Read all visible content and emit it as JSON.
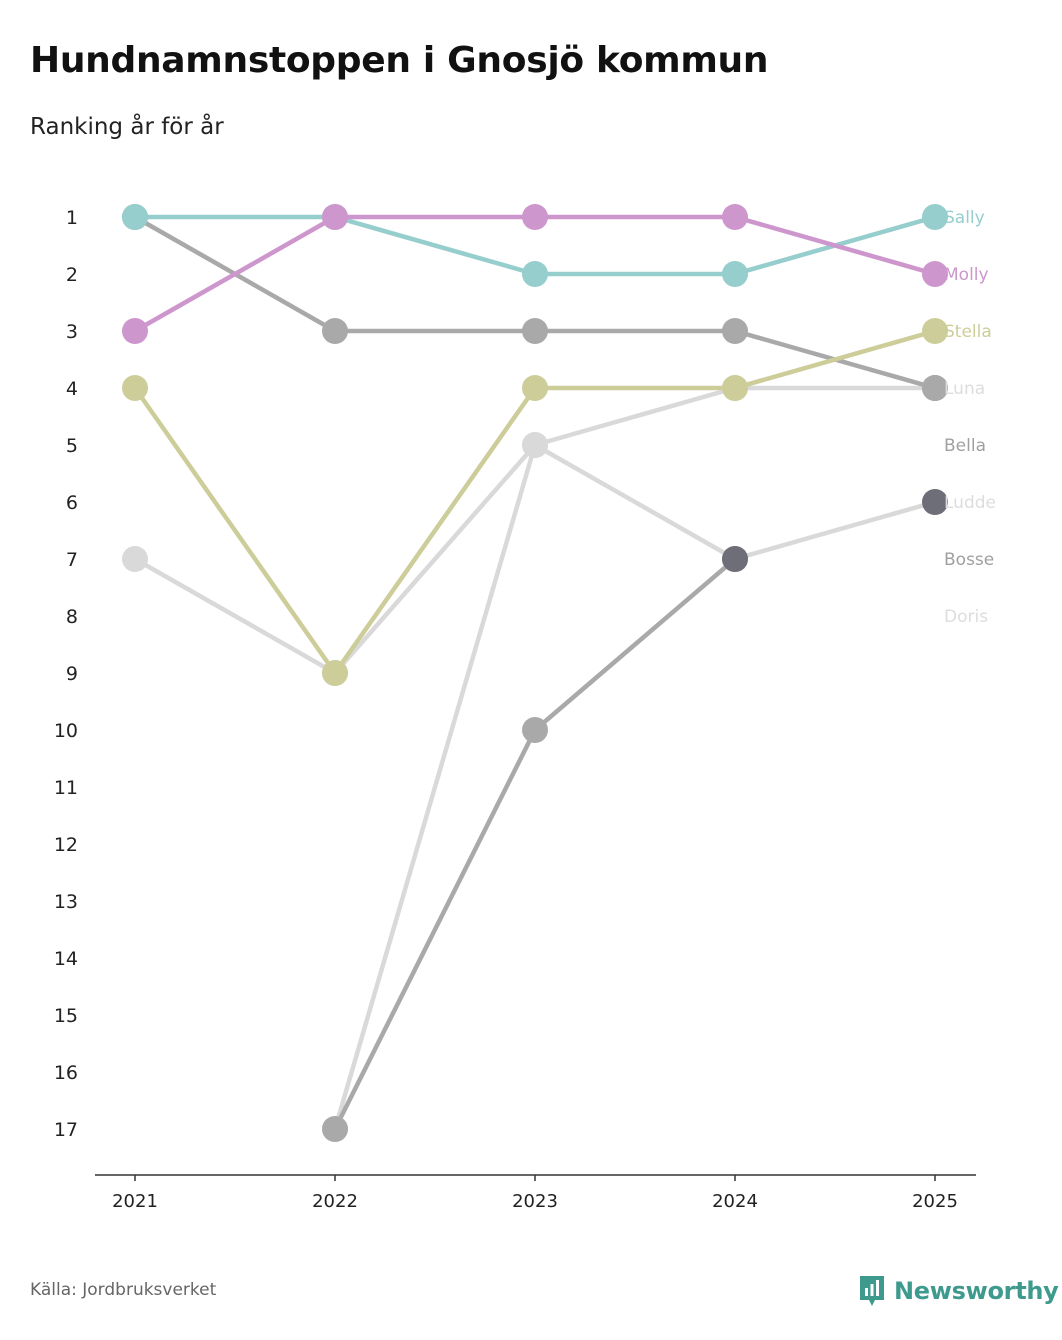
{
  "title": "Hundnamnstoppen i Gnosjö kommun",
  "subtitle": "Ranking år för år",
  "source": "Källa: Jordbruksverket",
  "brand": "Newsworthy",
  "chart_data": {
    "type": "line",
    "subtype": "bump-chart",
    "x": [
      "2021",
      "2022",
      "2023",
      "2024",
      "2025"
    ],
    "y_ticks": [
      1,
      2,
      3,
      4,
      5,
      6,
      7,
      8,
      9,
      10,
      11,
      12,
      13,
      14,
      15,
      16,
      17
    ],
    "ylim": [
      1,
      17
    ],
    "y_inverted": true,
    "series": [
      {
        "name": "Doris",
        "color": "#d9d9d9",
        "values": [
          7,
          9,
          5,
          7,
          6
        ]
      },
      {
        "name": "Bosse",
        "color": "#d9d9d9",
        "values": [
          null,
          17,
          5,
          4,
          4
        ]
      },
      {
        "name": "Bella",
        "color": "#a9a9a9",
        "values": [
          1,
          3,
          3,
          3,
          4
        ]
      },
      {
        "name": "Stella",
        "color": "#cdcd9a",
        "values": [
          4,
          9,
          4,
          4,
          3
        ]
      },
      {
        "name": "Sally",
        "color": "#96cdcd",
        "values": [
          1,
          1,
          2,
          2,
          1
        ]
      },
      {
        "name": "Molly",
        "color": "#cd96cd",
        "values": [
          3,
          1,
          1,
          1,
          2
        ]
      },
      {
        "name": "Ludde",
        "color": "#a9a9a9",
        "values": [
          null,
          17,
          10,
          7,
          null
        ]
      }
    ],
    "markers": [
      {
        "name": "Luna",
        "color": "#a9a9a9",
        "x": "2025",
        "y": 4
      },
      {
        "name": "Ludde",
        "color": "#6e6e78",
        "x": "2024",
        "y": 7
      },
      {
        "name": "Ludde",
        "color": "#6e6e78",
        "x": "2025",
        "y": 6
      }
    ],
    "end_labels": [
      {
        "name": "Sally",
        "rank": 1,
        "color": "#96cdcd"
      },
      {
        "name": "Molly",
        "rank": 2,
        "color": "#cd96cd"
      },
      {
        "name": "Stella",
        "rank": 3,
        "color": "#cdcd9a"
      },
      {
        "name": "Luna",
        "rank": 4,
        "color": "#dddddd"
      },
      {
        "name": "Bella",
        "rank": 5,
        "color": "#a0a0a0"
      },
      {
        "name": "Ludde",
        "rank": 6,
        "color": "#dddddd"
      },
      {
        "name": "Bosse",
        "rank": 7,
        "color": "#a0a0a0"
      },
      {
        "name": "Doris",
        "rank": 8,
        "color": "#dddddd"
      }
    ],
    "xlabel": "",
    "ylabel": ""
  }
}
